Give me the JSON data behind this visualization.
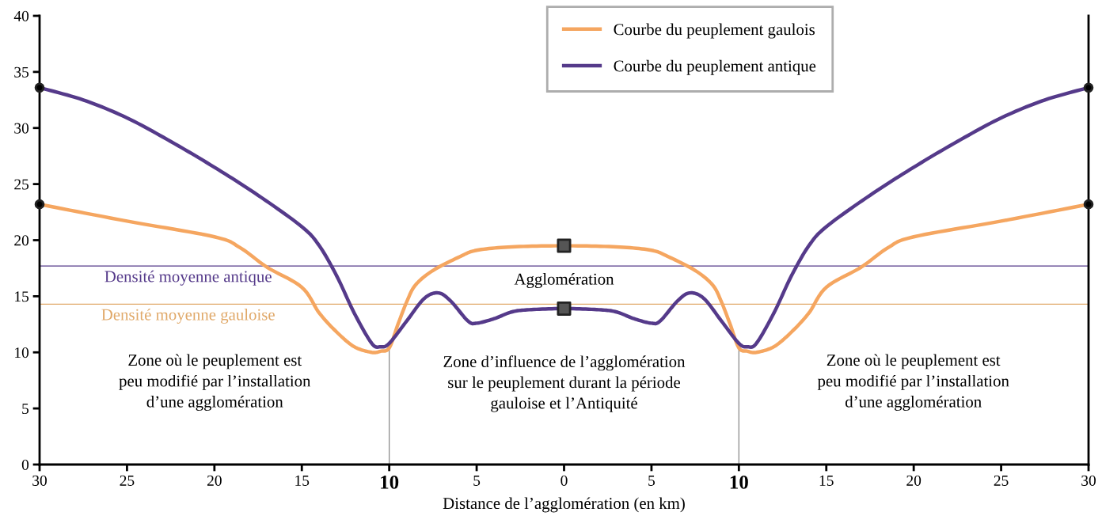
{
  "chart_data": {
    "type": "line",
    "xlabel": "Distance de l’agglomération (en km)",
    "xlim": [
      -30,
      30
    ],
    "xticks": [
      {
        "value": -30,
        "label": "30"
      },
      {
        "value": -25,
        "label": "25"
      },
      {
        "value": -20,
        "label": "20"
      },
      {
        "value": -15,
        "label": "15"
      },
      {
        "value": -10,
        "label": "10"
      },
      {
        "value": -5,
        "label": "5"
      },
      0,
      5,
      10,
      15,
      20,
      25,
      30
    ],
    "ylim": [
      0,
      40
    ],
    "yticks": [
      0,
      5,
      10,
      15,
      20,
      25,
      30,
      35,
      40
    ],
    "grid": false,
    "legend": "top",
    "marker": "none",
    "line_style": "solid",
    "series": [
      {
        "name": "Courbe du peuplement gaulois",
        "color": "#f5a660",
        "x": [
          -30,
          -25,
          -20,
          -18.5,
          -17,
          -15,
          -14,
          -13,
          -12,
          -11,
          -10.5,
          -10,
          -9.5,
          -9,
          -8.5,
          -7.5,
          -6,
          -5,
          -3,
          0,
          3,
          5,
          6,
          7.5,
          8.5,
          9,
          9.5,
          10,
          10.5,
          11,
          12,
          13,
          14,
          15,
          17,
          18.5,
          20,
          25,
          30
        ],
        "values": [
          23.2,
          21.7,
          20.3,
          19.3,
          17.6,
          15.8,
          13.5,
          11.8,
          10.5,
          10.0,
          10.1,
          10.4,
          12.5,
          14.5,
          16.0,
          17.3,
          18.5,
          19.1,
          19.4,
          19.5,
          19.4,
          19.1,
          18.5,
          17.3,
          16.0,
          14.5,
          12.5,
          10.4,
          10.1,
          10.0,
          10.5,
          11.8,
          13.5,
          15.8,
          17.6,
          19.3,
          20.3,
          21.7,
          23.2
        ]
      },
      {
        "name": "Courbe du peuplement antique",
        "color": "#553a8a",
        "x": [
          -30,
          -27.5,
          -25,
          -22.5,
          -20,
          -17.5,
          -15,
          -14,
          -13,
          -12,
          -11,
          -10.5,
          -10,
          -9,
          -8,
          -7.2,
          -6.5,
          -5.5,
          -5,
          -4,
          -3,
          -2,
          0,
          2,
          3,
          4,
          5,
          5.5,
          6.5,
          7.2,
          8,
          9,
          10,
          10.5,
          11,
          12,
          13,
          14,
          15,
          17.5,
          20,
          22.5,
          25,
          27.5,
          30
        ],
        "values": [
          33.6,
          32.5,
          30.9,
          28.8,
          26.5,
          24.0,
          21.2,
          19.5,
          16.8,
          13.5,
          10.8,
          10.5,
          10.8,
          12.8,
          14.8,
          15.3,
          14.6,
          12.8,
          12.6,
          13.0,
          13.6,
          13.8,
          13.9,
          13.8,
          13.6,
          13.0,
          12.6,
          12.8,
          14.6,
          15.3,
          14.8,
          12.8,
          10.8,
          10.5,
          10.8,
          13.5,
          16.8,
          19.5,
          21.2,
          24.0,
          26.5,
          28.8,
          30.9,
          32.5,
          33.6
        ]
      },
      {
        "type": "scatter",
        "marker": "circle",
        "color": "#000000",
        "x": [
          -30,
          -30,
          30,
          30
        ],
        "values": [
          33.6,
          23.2,
          33.6,
          23.2
        ]
      },
      {
        "type": "scatter",
        "marker": "square",
        "color": "#555555",
        "x": [
          0,
          0
        ],
        "values": [
          19.5,
          13.9
        ]
      }
    ],
    "ref_lines": [
      {
        "axis": "y",
        "value": 17.7,
        "label": "Densité moyenne antique",
        "color": "#553a8a"
      },
      {
        "axis": "y",
        "value": 14.3,
        "label": "Densité moyenne gauloise",
        "color": "#e0a868"
      },
      {
        "axis": "x",
        "value": -10,
        "color": "#888888"
      },
      {
        "axis": "x",
        "value": 10,
        "color": "#888888"
      }
    ],
    "annotations": [
      "Agglomération",
      "Zone où le peuplement est\npeu modifié par l’installation\nd’une agglomération",
      "Zone d’influence de l’agglomération\nsur le peuplement durant la période\ngauloise et l’Antiquité",
      "Zone où le peuplement est\npeu modifié par l’installation\nd’une agglomération"
    ]
  }
}
